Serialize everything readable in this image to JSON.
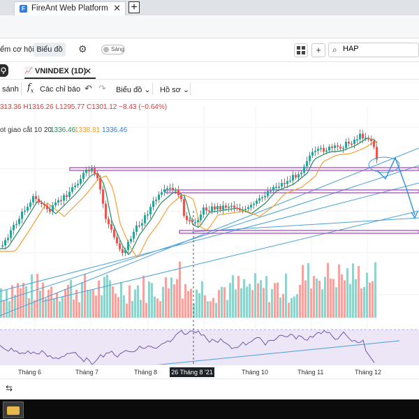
{
  "browser": {
    "tab_title": "FireAnt Web Platform",
    "close_glyph": "✕",
    "new_tab_glyph": "+"
  },
  "toolbar": {
    "opportunities_label": "ểm cơ hội",
    "chart_tab_label": "Biểu đồ",
    "theme_toggle_label": "Sáng",
    "search_value": "HAP"
  },
  "chart_tab": {
    "title": "VNINDEX (1D)",
    "close_glyph": "✕"
  },
  "chart_toolbar": {
    "compare_label": "sánh",
    "indicators_label": "Các chỉ báo",
    "chart_type_label": "Biểu đồ",
    "profile_label": "Hồ sơ"
  },
  "legend": {
    "ohlc": "313.36  H1316.26  L1295.77  C1301.12  −8.43 (−0.64%)",
    "ma_label": "ot giao cắt 10 20",
    "ma_value_1": "1336.46",
    "ma_value_2": "1338.81",
    "ma_value_3": "1336.46"
  },
  "x_axis": {
    "labels": [
      "Tháng 6",
      "Tháng 7",
      "Tháng 8",
      "Tháng 10",
      "Tháng 11",
      "Tháng 12"
    ],
    "crosshair_label": "26 Tháng 8 '21"
  },
  "colors": {
    "up": "#26a69a",
    "down": "#ef5350",
    "ma_fast": "#1f8a5a",
    "ma_slow": "#f0a030",
    "support_band": "#b04ac8",
    "trend_line": "#4aa0d8",
    "rsi_line": "#6e5aa8",
    "rsi_band": "#ece6f6"
  },
  "icons": {
    "panel_toggle": "lightbulb-icon",
    "settings": "gear-icon",
    "grid": "grid-icon",
    "add": "plus-icon",
    "search": "search-icon",
    "fx": "function-icon",
    "undo": "undo-icon",
    "redo": "redo-icon",
    "layout": "layout-icon"
  }
}
